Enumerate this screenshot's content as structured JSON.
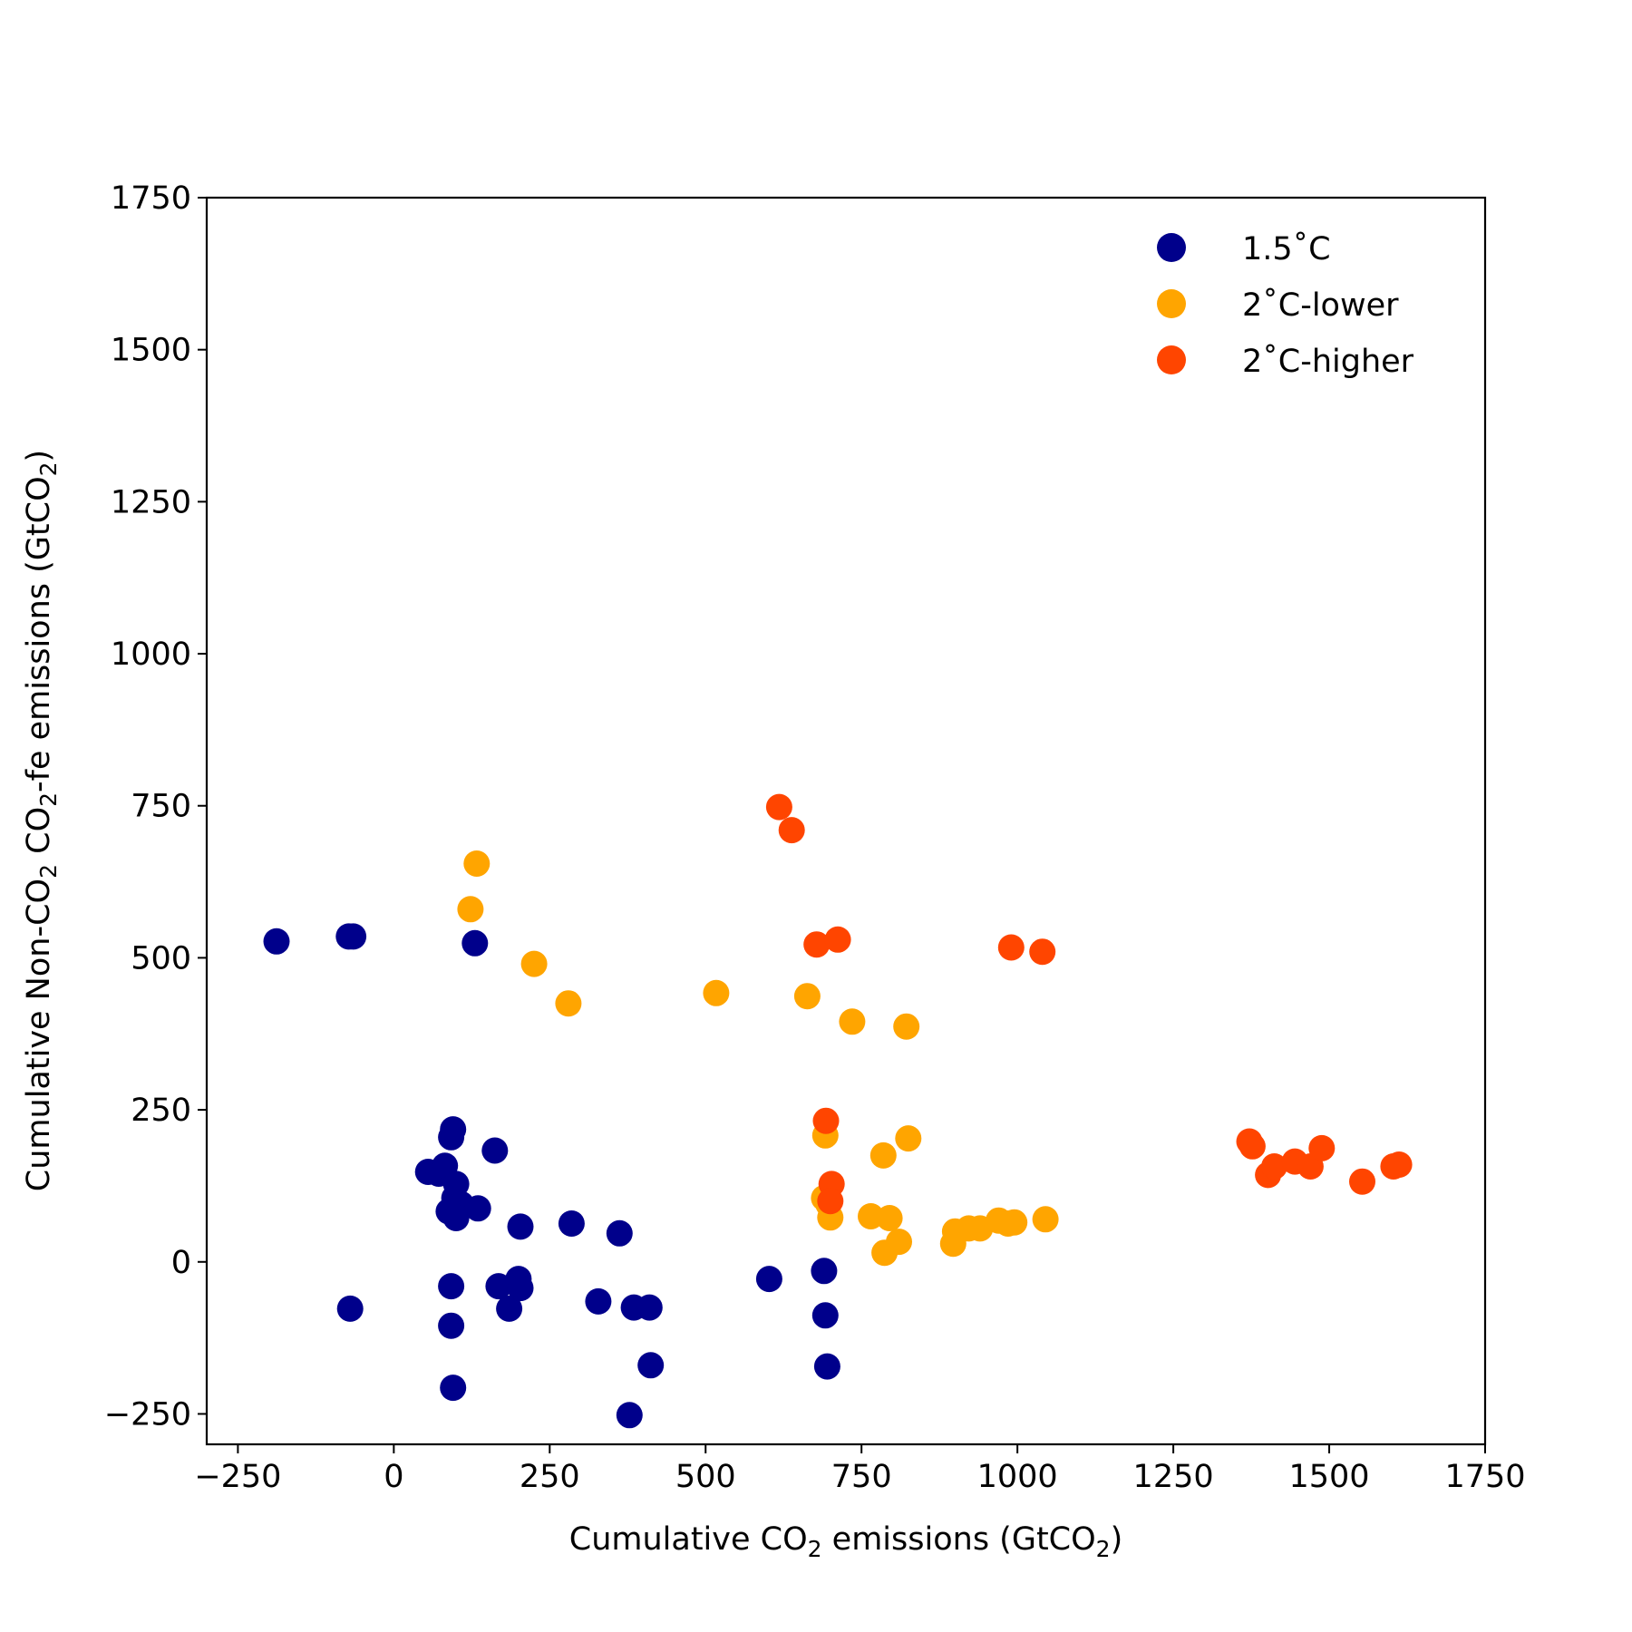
{
  "chart_data": {
    "type": "scatter",
    "title": "",
    "xlabel": {
      "prefix": "Cumulative CO",
      "sub": "2",
      "mid": " emissions (GtCO",
      "sub2": "2",
      "suffix": ")"
    },
    "ylabel": {
      "prefix": "Cumulative Non-CO",
      "sub": "2",
      "mid": " CO",
      "sub2": "2",
      "mid2": "-fe emissions (GtCO",
      "sub3": "2",
      "suffix": ")"
    },
    "xlim": [
      -300,
      1750
    ],
    "ylim": [
      -300,
      1750
    ],
    "xticks": [
      -250,
      0,
      250,
      500,
      750,
      1000,
      1250,
      1500,
      1750
    ],
    "yticks": [
      -250,
      0,
      250,
      500,
      750,
      1000,
      1250,
      1500,
      1750
    ],
    "xtick_labels": [
      "−250",
      "0",
      "250",
      "500",
      "750",
      "1000",
      "1250",
      "1500",
      "1750"
    ],
    "ytick_labels": [
      "−250",
      "0",
      "250",
      "500",
      "750",
      "1000",
      "1250",
      "1500",
      "1750"
    ],
    "grid": false,
    "legend_position": "top-right",
    "series": [
      {
        "name": "1.5˚C",
        "color": "#00008B",
        "points": [
          [
            -188,
            527
          ],
          [
            -72,
            535
          ],
          [
            -65,
            535
          ],
          [
            130,
            524
          ],
          [
            -70,
            -77
          ],
          [
            55,
            148
          ],
          [
            72,
            145
          ],
          [
            82,
            158
          ],
          [
            92,
            205
          ],
          [
            95,
            218
          ],
          [
            100,
            128
          ],
          [
            88,
            83
          ],
          [
            97,
            105
          ],
          [
            108,
            95
          ],
          [
            100,
            72
          ],
          [
            135,
            88
          ],
          [
            162,
            183
          ],
          [
            92,
            -40
          ],
          [
            92,
            -105
          ],
          [
            95,
            -207
          ],
          [
            168,
            -40
          ],
          [
            185,
            -77
          ],
          [
            200,
            -28
          ],
          [
            203,
            -43
          ],
          [
            203,
            58
          ],
          [
            285,
            63
          ],
          [
            328,
            -65
          ],
          [
            362,
            47
          ],
          [
            385,
            -75
          ],
          [
            410,
            -75
          ],
          [
            412,
            -170
          ],
          [
            378,
            -252
          ],
          [
            602,
            -28
          ],
          [
            690,
            -15
          ],
          [
            692,
            -88
          ],
          [
            695,
            -172
          ]
        ]
      },
      {
        "name": "2˚C-lower",
        "color": "#FFA500",
        "points": [
          [
            133,
            655
          ],
          [
            123,
            580
          ],
          [
            225,
            490
          ],
          [
            280,
            425
          ],
          [
            517,
            442
          ],
          [
            663,
            437
          ],
          [
            735,
            395
          ],
          [
            822,
            387
          ],
          [
            692,
            208
          ],
          [
            825,
            203
          ],
          [
            785,
            175
          ],
          [
            690,
            105
          ],
          [
            697,
            95
          ],
          [
            700,
            73
          ],
          [
            765,
            75
          ],
          [
            795,
            72
          ],
          [
            810,
            33
          ],
          [
            787,
            15
          ],
          [
            897,
            30
          ],
          [
            900,
            50
          ],
          [
            922,
            55
          ],
          [
            940,
            55
          ],
          [
            970,
            68
          ],
          [
            985,
            63
          ],
          [
            995,
            65
          ],
          [
            1045,
            70
          ]
        ]
      },
      {
        "name": "2˚C-higher",
        "color": "#FF4500",
        "points": [
          [
            618,
            748
          ],
          [
            638,
            710
          ],
          [
            678,
            522
          ],
          [
            712,
            530
          ],
          [
            990,
            517
          ],
          [
            1040,
            510
          ],
          [
            693,
            232
          ],
          [
            702,
            128
          ],
          [
            700,
            100
          ],
          [
            1372,
            198
          ],
          [
            1377,
            190
          ],
          [
            1402,
            143
          ],
          [
            1412,
            157
          ],
          [
            1445,
            165
          ],
          [
            1470,
            157
          ],
          [
            1488,
            187
          ],
          [
            1553,
            132
          ],
          [
            1603,
            157
          ],
          [
            1612,
            160
          ]
        ]
      }
    ]
  }
}
